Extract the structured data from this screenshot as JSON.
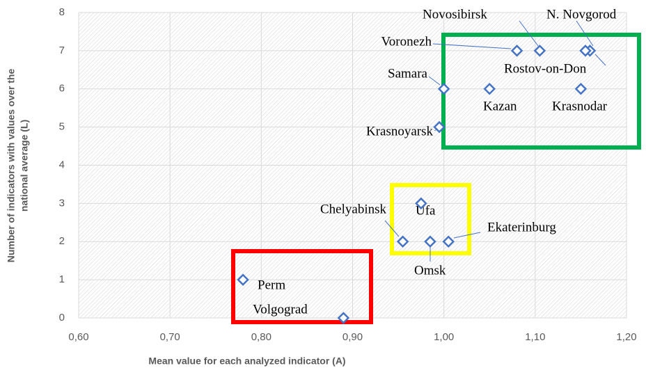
{
  "chart_data": {
    "type": "scatter",
    "x_label": "Mean value for each analyzed indicator (A)",
    "y_label": [
      "Number of indicators with values over the",
      "national average (L)"
    ],
    "series": [
      {
        "color": "#4472c4",
        "names": [
          "Perm",
          "Volgograd",
          "Chelyabinsk",
          "Omsk",
          "Ekaterinburg",
          "Ufa",
          "Krasnoyarsk",
          "Samara",
          "Kazan",
          "Krasnodar",
          "Voronezh",
          "Novosibirsk",
          "N. Novgorod",
          "Rostov-on-Don"
        ],
        "x": [
          0.78,
          0.89,
          0.955,
          0.985,
          1.005,
          0.975,
          0.995,
          1.0,
          1.05,
          1.15,
          1.08,
          1.105,
          1.16,
          1.155
        ],
        "values": [
          1,
          0,
          2,
          2,
          2,
          3,
          5,
          6,
          6,
          6,
          7,
          7,
          7,
          7
        ]
      }
    ],
    "xlim": [
      0.6,
      1.2
    ],
    "xticks": [
      {
        "value": 0.6,
        "label": "0,60"
      },
      {
        "value": 0.7,
        "label": "0,70"
      },
      {
        "value": 0.8,
        "label": "0,80"
      },
      {
        "value": 0.9,
        "label": "0,90"
      },
      {
        "value": 1.0,
        "label": "1,00"
      },
      {
        "value": 1.1,
        "label": "1,10"
      },
      {
        "value": 1.2,
        "label": "1,20"
      }
    ],
    "ylim": [
      0,
      8
    ],
    "yticks": [
      0,
      1,
      2,
      3,
      4,
      5,
      6,
      7,
      8
    ],
    "grid": true
  }
}
